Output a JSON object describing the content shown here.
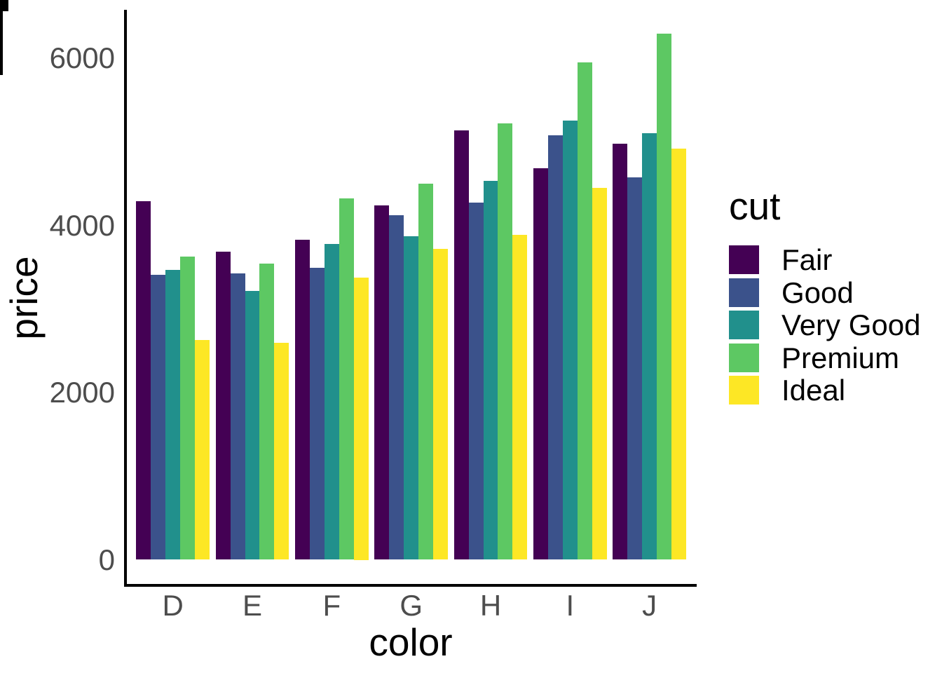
{
  "chart_data": {
    "type": "bar",
    "grouping": "dodge",
    "title": "",
    "xlabel": "color",
    "ylabel": "price",
    "categories": [
      "D",
      "E",
      "F",
      "G",
      "H",
      "I",
      "J"
    ],
    "series": [
      {
        "name": "Fair",
        "color": "#440154",
        "values": [
          4291,
          3682,
          3827,
          4239,
          5136,
          4685,
          4976
        ]
      },
      {
        "name": "Good",
        "color": "#3B528B",
        "values": [
          3405,
          3424,
          3496,
          4123,
          4276,
          5079,
          4574
        ]
      },
      {
        "name": "Very Good",
        "color": "#21908C",
        "values": [
          3470,
          3215,
          3779,
          3873,
          4535,
          5256,
          5104
        ]
      },
      {
        "name": "Premium",
        "color": "#5DC863",
        "values": [
          3631,
          3539,
          4325,
          4501,
          5217,
          5946,
          6295
        ]
      },
      {
        "name": "Ideal",
        "color": "#FDE725",
        "values": [
          2629,
          2598,
          3375,
          3721,
          3889,
          4452,
          4918
        ]
      }
    ],
    "y_ticks": [
      0,
      2000,
      4000,
      6000
    ],
    "ylim": [
      0,
      6580
    ],
    "grid": false,
    "legend": {
      "title": "cut",
      "position": "right"
    }
  },
  "colors": {
    "background": "#ffffff",
    "axis_line": "#000000",
    "axis_text": "#4d4d4d",
    "title_text": "#000000"
  }
}
